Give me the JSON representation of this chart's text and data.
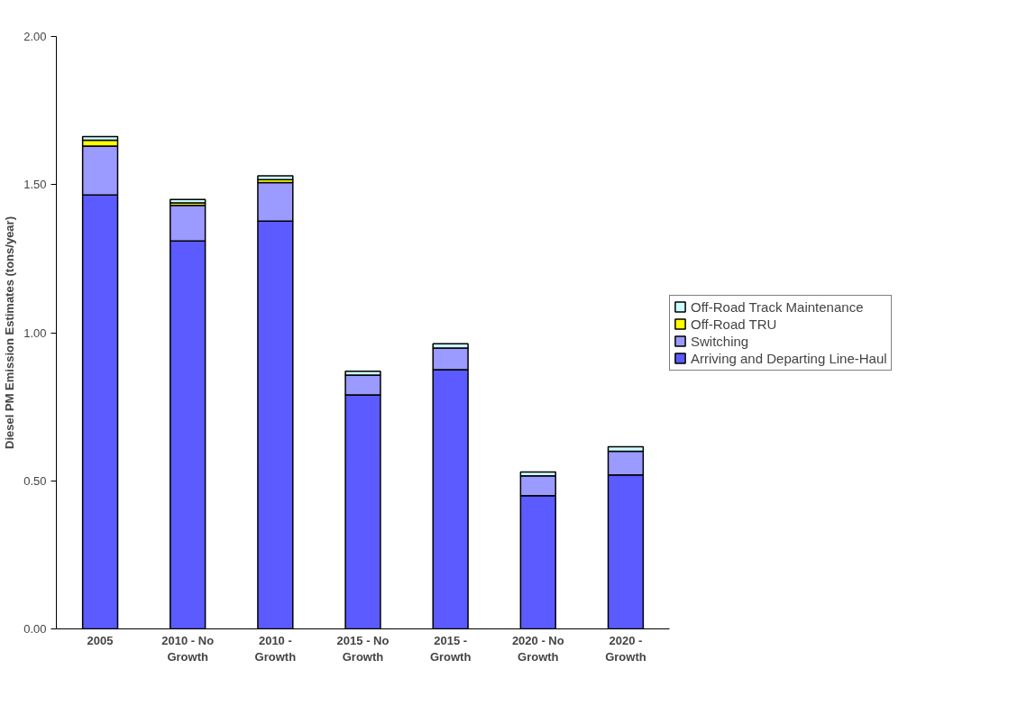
{
  "chart_data": {
    "type": "bar",
    "stacked": true,
    "ylabel": "Diesel PM Emission Estimates (tons/year)",
    "categories": [
      "2005",
      "2010 - No Growth",
      "2010 - Growth",
      "2015 - No Growth",
      "2015 - Growth",
      "2020 - No Growth",
      "2020 - Growth"
    ],
    "series": [
      {
        "name": "Arriving and Departing Line-Haul",
        "color": "#5b5bff",
        "values": [
          1.465,
          1.31,
          1.377,
          0.79,
          0.875,
          0.45,
          0.52
        ]
      },
      {
        "name": "Switching",
        "color": "#9a9aff",
        "values": [
          0.165,
          0.12,
          0.13,
          0.067,
          0.073,
          0.067,
          0.08
        ]
      },
      {
        "name": "Off-Road TRU",
        "color": "#ffff00",
        "values": [
          0.02,
          0.008,
          0.01,
          null,
          null,
          null,
          null
        ]
      },
      {
        "name": "Off-Road Track Maintenance",
        "color": "#ccffff",
        "values": [
          0.012,
          0.012,
          0.013,
          0.013,
          0.015,
          0.013,
          0.015
        ]
      }
    ],
    "ylim": [
      0,
      2
    ],
    "yticks": [
      {
        "value": 0,
        "label": "0.00"
      },
      {
        "value": 0.5,
        "label": "0.50"
      },
      {
        "value": 1,
        "label": "1.00"
      },
      {
        "value": 1.5,
        "label": "1.50"
      },
      {
        "value": 2,
        "label": "2.00"
      }
    ],
    "legend": "right"
  }
}
